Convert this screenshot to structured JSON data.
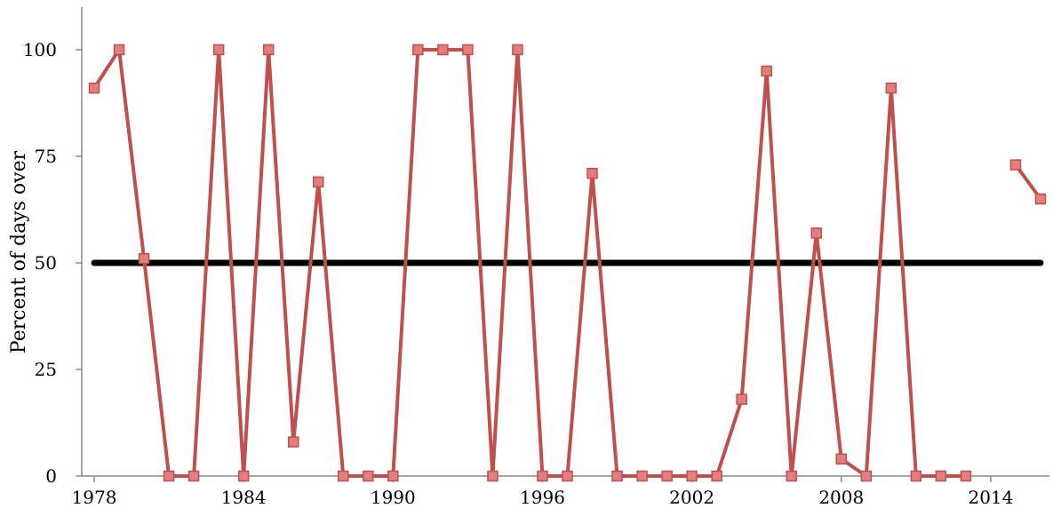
{
  "chart_data": {
    "type": "line",
    "title": "",
    "xlabel": "",
    "ylabel": "Percent of days over",
    "xlim": [
      1977.5,
      2016.5
    ],
    "ylim": [
      0,
      110
    ],
    "x_ticks": [
      1978,
      1984,
      1990,
      1996,
      2002,
      2008,
      2014
    ],
    "x_tick_labels": [
      "1978",
      "1984",
      "1990",
      "1996",
      "2002",
      "2008",
      "2014"
    ],
    "y_ticks": [
      0,
      25,
      50,
      75,
      100
    ],
    "y_tick_labels": [
      "0",
      "25",
      "50",
      "75",
      "100"
    ],
    "grid": false,
    "legend": "none",
    "series": [
      {
        "color": "#c0504d",
        "marker": "square",
        "points": [
          [
            1978,
            91
          ],
          [
            1979,
            100
          ],
          [
            1980,
            51
          ],
          [
            1981,
            0
          ],
          [
            1982,
            0
          ],
          [
            1983,
            100
          ],
          [
            1984,
            0
          ],
          [
            1985,
            100
          ],
          [
            1986,
            8
          ],
          [
            1987,
            69
          ],
          [
            1988,
            0
          ],
          [
            1989,
            0
          ],
          [
            1990,
            0
          ],
          [
            1991,
            100
          ],
          [
            1992,
            100
          ],
          [
            1993,
            100
          ],
          [
            1994,
            0
          ],
          [
            1995,
            100
          ],
          [
            1996,
            0
          ],
          [
            1997,
            0
          ],
          [
            1998,
            71
          ],
          [
            1999,
            0
          ],
          [
            2000,
            0
          ],
          [
            2001,
            0
          ],
          [
            2002,
            0
          ],
          [
            2003,
            0
          ],
          [
            2004,
            18
          ],
          [
            2005,
            95
          ],
          [
            2006,
            0
          ],
          [
            2007,
            57
          ],
          [
            2008,
            4
          ],
          [
            2009,
            0
          ],
          [
            2010,
            91
          ],
          [
            2011,
            0
          ],
          [
            2012,
            0
          ],
          [
            2013,
            0
          ],
          [
            2014,
            null
          ],
          [
            2015,
            73
          ],
          [
            2016,
            65
          ]
        ]
      }
    ],
    "reference_line": {
      "y": 50,
      "x_range": [
        1978,
        2016
      ],
      "color": "#000000"
    },
    "colors": {
      "series_line": "#c0504d",
      "marker_fill": "#e07f7d",
      "marker_stroke": "#c0504d",
      "axis": "#888888",
      "reference": "#000000"
    }
  }
}
